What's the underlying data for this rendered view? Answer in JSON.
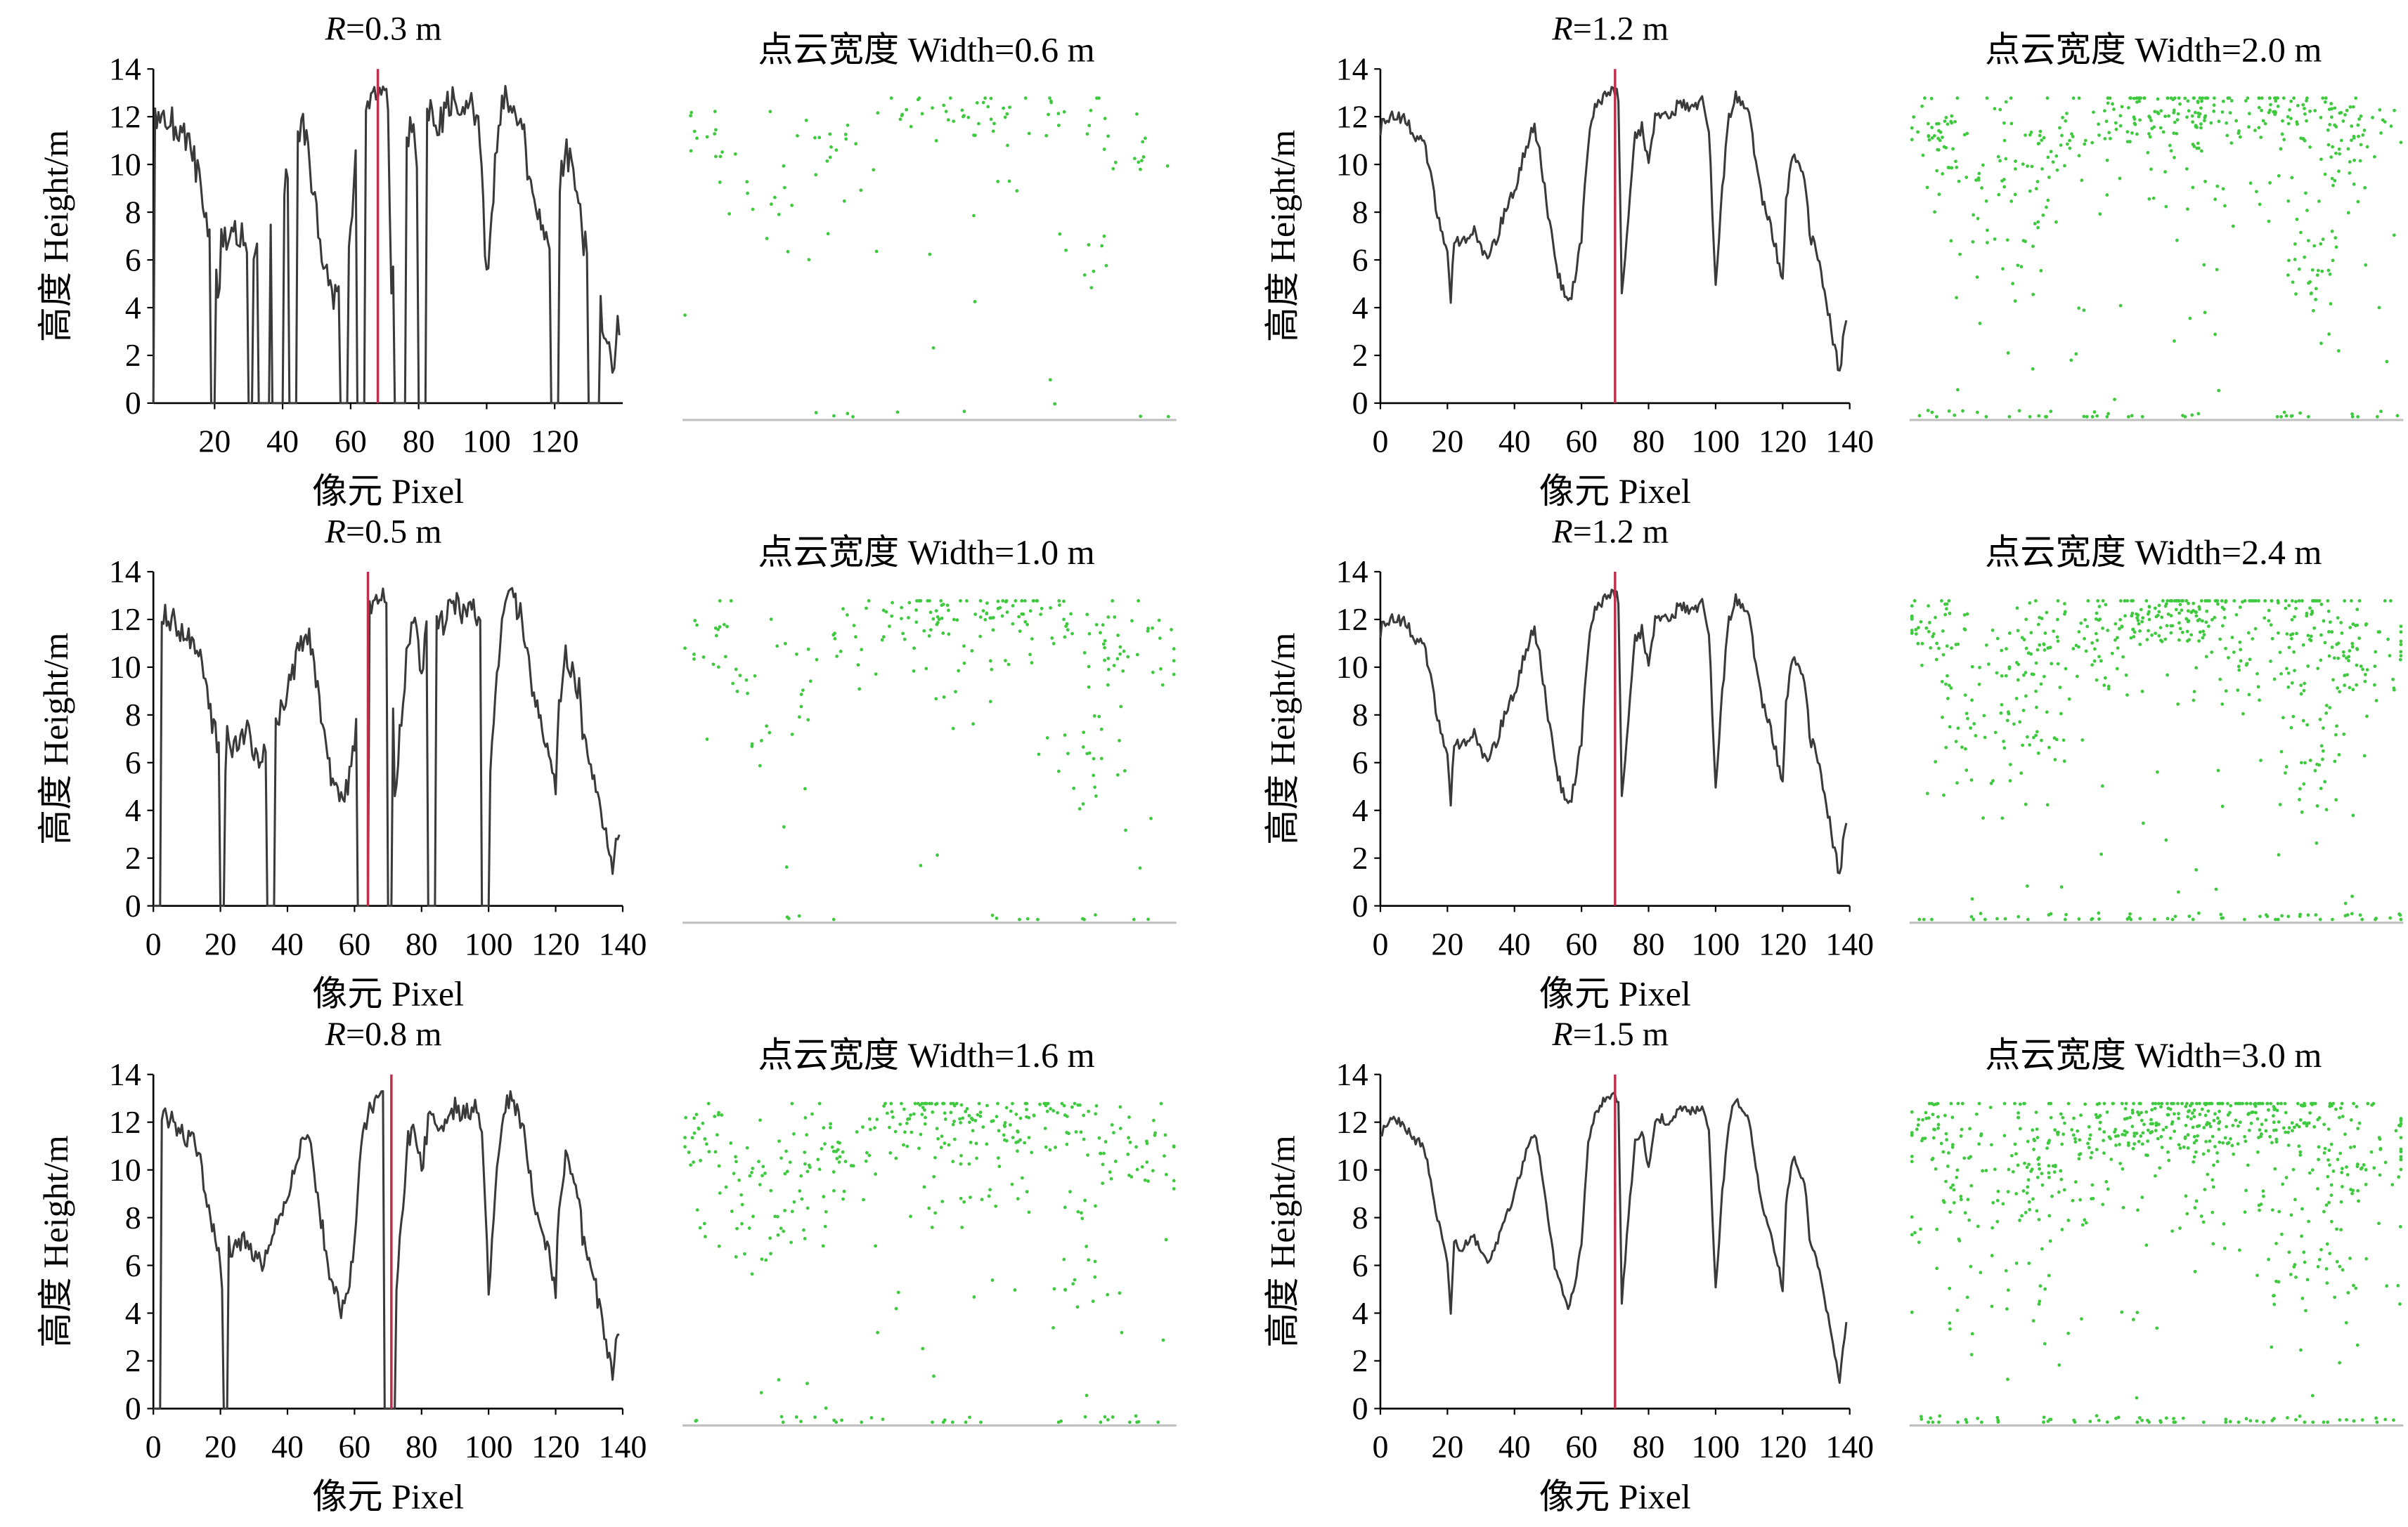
{
  "colors": {
    "profile_line": "#3a3a3a",
    "marker": "#c0304a",
    "cloud_point": "#3ec93e",
    "ground": "#c0c0c0"
  },
  "chart_data": [
    {
      "type": "line",
      "title": "R=0.3 m",
      "title_italic": "R",
      "title_rest": "=0.3 m",
      "xlabel": "像元 Pixel",
      "ylabel": "高度 Height/m",
      "xlim": [
        2,
        140
      ],
      "ylim": [
        0,
        14
      ],
      "xticks": [
        "20",
        "40",
        "60",
        "80",
        "100",
        "120"
      ],
      "yticks": [
        "0",
        "2",
        "4",
        "6",
        "8",
        "10",
        "12",
        "14"
      ],
      "marker_x": 68,
      "variant": 0,
      "scatter": {
        "type": "scatter",
        "title": "点云宽度 Width=0.6 m",
        "density": 0.4,
        "point_count": 140
      }
    },
    {
      "type": "line",
      "title": "R=1.2 m",
      "title_italic": "R",
      "title_rest": "=1.2 m",
      "xlabel": "像元 Pixel",
      "ylabel": "高度 Height/m",
      "xlim": [
        0,
        140
      ],
      "ylim": [
        0,
        14
      ],
      "xticks": [
        "0",
        "20",
        "40",
        "60",
        "80",
        "100",
        "120",
        "140"
      ],
      "yticks": [
        "0",
        "2",
        "4",
        "6",
        "8",
        "10",
        "12",
        "14"
      ],
      "marker_x": 70,
      "variant": 3,
      "scatter": {
        "type": "scatter",
        "title": "点云宽度 Width=2.0 m",
        "density": 1.4,
        "point_count": 520
      }
    },
    {
      "type": "line",
      "title": "R=0.5 m",
      "title_italic": "R",
      "title_rest": "=0.5 m",
      "xlabel": "像元 Pixel",
      "ylabel": "高度 Height/m",
      "xlim": [
        0,
        140
      ],
      "ylim": [
        0,
        14
      ],
      "xticks": [
        "0",
        "20",
        "40",
        "60",
        "80",
        "100",
        "120",
        "140"
      ],
      "yticks": [
        "0",
        "2",
        "4",
        "6",
        "8",
        "10",
        "12",
        "14"
      ],
      "marker_x": 64,
      "variant": 1,
      "scatter": {
        "type": "scatter",
        "title": "点云宽度 Width=1.0 m",
        "density": 0.7,
        "point_count": 260
      }
    },
    {
      "type": "line",
      "title": "R=1.2 m",
      "title_italic": "R",
      "title_rest": "=1.2 m",
      "xlabel": "像元 Pixel",
      "ylabel": "高度 Height/m",
      "xlim": [
        0,
        140
      ],
      "ylim": [
        0,
        14
      ],
      "xticks": [
        "0",
        "20",
        "40",
        "60",
        "80",
        "100",
        "120",
        "140"
      ],
      "yticks": [
        "0",
        "2",
        "4",
        "6",
        "8",
        "10",
        "12",
        "14"
      ],
      "marker_x": 70,
      "variant": 3,
      "scatter": {
        "type": "scatter",
        "title": "点云宽度 Width=2.4 m",
        "density": 1.7,
        "point_count": 640
      }
    },
    {
      "type": "line",
      "title": "R=0.8 m",
      "title_italic": "R",
      "title_rest": "=0.8 m",
      "xlabel": "像元 Pixel",
      "ylabel": "高度 Height/m",
      "xlim": [
        0,
        140
      ],
      "ylim": [
        0,
        14
      ],
      "xticks": [
        "0",
        "20",
        "40",
        "60",
        "80",
        "100",
        "120",
        "140"
      ],
      "yticks": [
        "0",
        "2",
        "4",
        "6",
        "8",
        "10",
        "12",
        "14"
      ],
      "marker_x": 71,
      "variant": 2,
      "scatter": {
        "type": "scatter",
        "title": "点云宽度 Width=1.6 m",
        "density": 1.1,
        "point_count": 420
      }
    },
    {
      "type": "line",
      "title": "R=1.5 m",
      "title_italic": "R",
      "title_rest": "=1.5 m",
      "xlabel": "像元 Pixel",
      "ylabel": "高度 Height/m",
      "xlim": [
        0,
        140
      ],
      "ylim": [
        0,
        14
      ],
      "xticks": [
        "0",
        "20",
        "40",
        "60",
        "80",
        "100",
        "120",
        "140"
      ],
      "yticks": [
        "0",
        "2",
        "4",
        "6",
        "8",
        "10",
        "12",
        "14"
      ],
      "marker_x": 70,
      "variant": 4,
      "scatter": {
        "type": "scatter",
        "title": "点云宽度 Width=3.0 m",
        "density": 2.0,
        "point_count": 760
      }
    }
  ]
}
